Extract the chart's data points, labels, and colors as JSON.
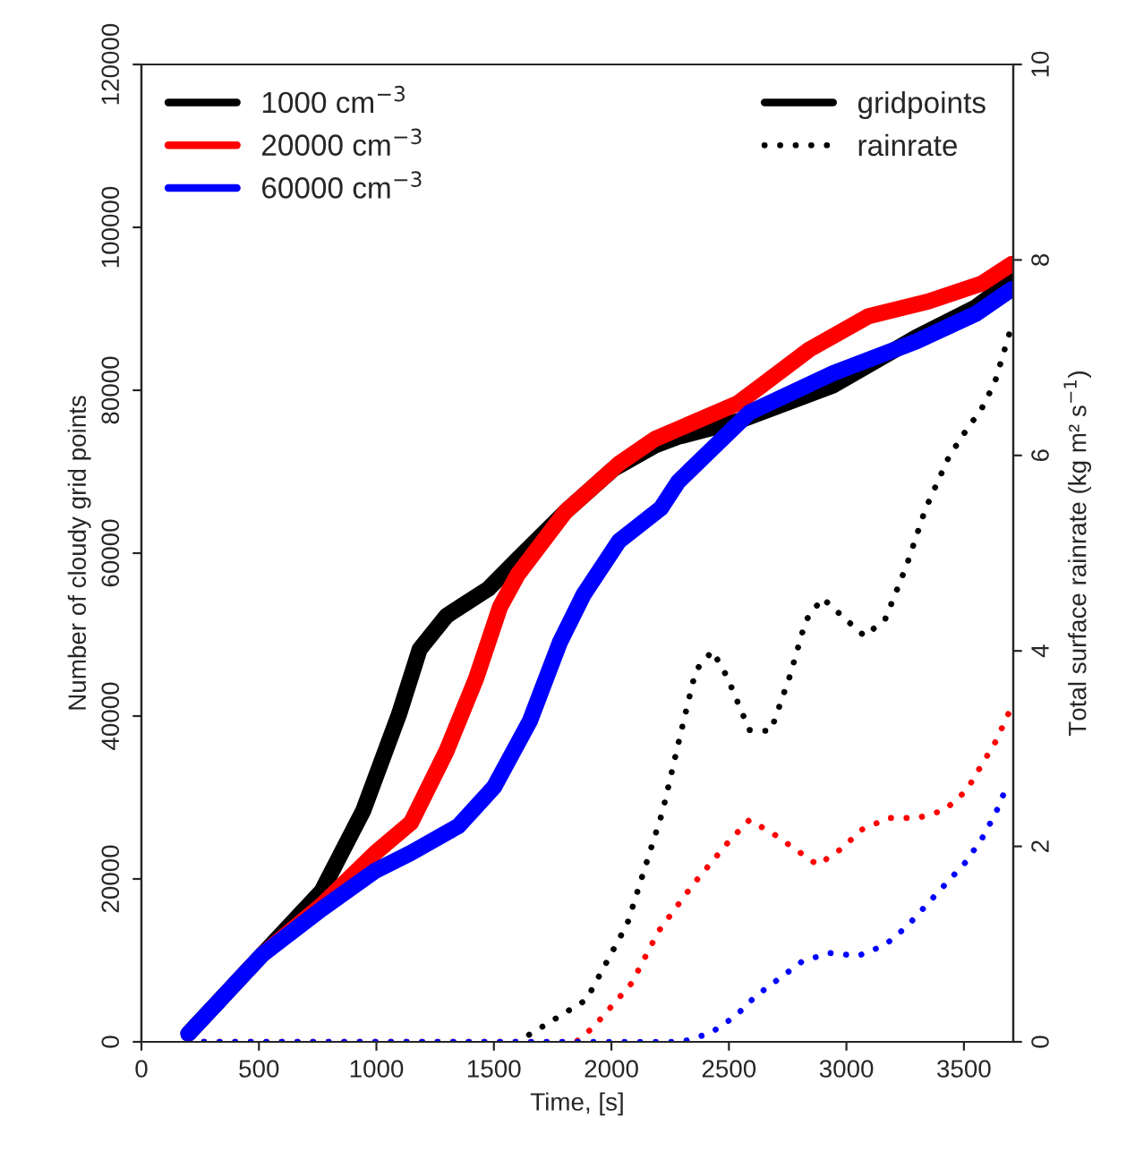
{
  "chart_data": {
    "type": "line",
    "xlabel": "Time, [s]",
    "ylabel": "Number of cloudy grid points",
    "y2label": "Total surface rainrate (kg m² s$^{−1}$)",
    "xlim": [
      0,
      3710
    ],
    "xticks": [
      0,
      500,
      1000,
      1500,
      2000,
      2500,
      3000,
      3500
    ],
    "ylim": [
      0,
      120000
    ],
    "yticks": [
      0,
      20000,
      40000,
      60000,
      80000,
      100000,
      120000
    ],
    "y2lim": [
      0,
      10
    ],
    "y2ticks": [
      0,
      2,
      4,
      6,
      8,
      10
    ],
    "legend": "top left",
    "grid": false,
    "marker": "none",
    "annotations": [
      "gridpoints",
      "rainrate"
    ],
    "series": [
      {
        "name": "1000 cm$^{−3}$",
        "color": "#000000",
        "line_style": "solid",
        "x": [
          200,
          514,
          767,
          944,
          1096,
          1184,
          1298,
          1475,
          1602,
          1805,
          2007,
          2184,
          2285,
          2538,
          2944,
          3298,
          3551,
          3703
        ],
        "values": [
          1000,
          10700,
          18500,
          28400,
          40200,
          48200,
          52300,
          55600,
          59300,
          65100,
          70300,
          73200,
          74300,
          76200,
          80600,
          86500,
          90200,
          93500
        ]
      },
      {
        "name": "20000 cm$^{−3}$",
        "color": "#ff0000",
        "line_style": "solid",
        "x": [
          514,
          767,
          995,
          1147,
          1298,
          1424,
          1526,
          1602,
          1805,
          2033,
          2184,
          2538,
          2640,
          2842,
          3095,
          3349,
          3576,
          3703
        ],
        "values": [
          10700,
          16800,
          23200,
          26900,
          35700,
          44600,
          53400,
          57400,
          65100,
          71000,
          74000,
          78400,
          80600,
          85000,
          89100,
          90900,
          93100,
          95500
        ]
      },
      {
        "name": "60000 cm$^{−3}$",
        "color": "#0000ff",
        "line_style": "solid",
        "x": [
          200,
          514,
          767,
          995,
          1147,
          1349,
          1501,
          1653,
          1780,
          1881,
          2033,
          2210,
          2285,
          2589,
          2944,
          3298,
          3551,
          3703
        ],
        "values": [
          1000,
          10700,
          16300,
          21000,
          23200,
          26500,
          31300,
          39400,
          49000,
          54900,
          61500,
          65500,
          68800,
          77300,
          82100,
          86000,
          89400,
          92400
        ]
      },
      {
        "color": "#000000",
        "line_style": "dotted",
        "axis": "y2",
        "x": [
          200,
          1600,
          1893,
          2068,
          2217,
          2301,
          2359,
          2430,
          2491,
          2587,
          2678,
          2759,
          2827,
          2898,
          2989,
          3078,
          3166,
          3257,
          3336,
          3437,
          3505,
          3576,
          3632,
          3700
        ],
        "values": [
          0,
          0,
          0.43,
          1.21,
          2.35,
          3.22,
          3.8,
          4.0,
          3.74,
          3.19,
          3.18,
          3.74,
          4.31,
          4.54,
          4.34,
          4.15,
          4.33,
          4.88,
          5.45,
          5.99,
          6.24,
          6.48,
          6.75,
          7.3
        ]
      },
      {
        "color": "#ff0000",
        "line_style": "dotted",
        "axis": "y2",
        "x": [
          200,
          1850,
          1923,
          2086,
          2200,
          2344,
          2503,
          2587,
          2688,
          2878,
          2976,
          3065,
          3179,
          3303,
          3417,
          3510,
          3637,
          3690
        ],
        "values": [
          0,
          0,
          0.15,
          0.6,
          1.13,
          1.6,
          2.06,
          2.27,
          2.13,
          1.81,
          1.97,
          2.17,
          2.29,
          2.29,
          2.37,
          2.57,
          3.08,
          3.36
        ]
      },
      {
        "color": "#0000ff",
        "line_style": "dotted",
        "axis": "y2",
        "x": [
          200,
          2300,
          2422,
          2526,
          2615,
          2810,
          2926,
          3050,
          3164,
          3257,
          3424,
          3508,
          3579,
          3637,
          3685
        ],
        "values": [
          0,
          0,
          0.09,
          0.26,
          0.47,
          0.82,
          0.91,
          0.88,
          0.99,
          1.18,
          1.62,
          1.84,
          2.09,
          2.35,
          2.63
        ]
      }
    ]
  }
}
